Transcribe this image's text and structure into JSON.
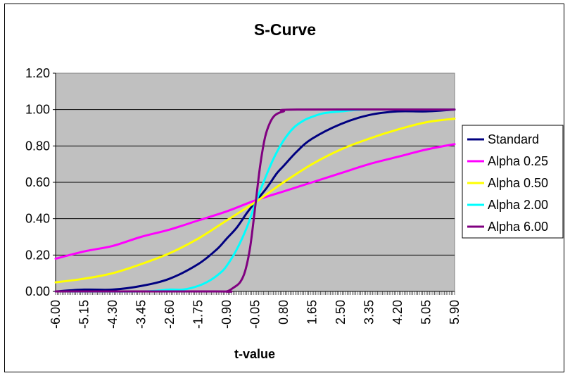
{
  "chart_data": {
    "type": "line",
    "title": "S-Curve",
    "xlabel": "t-value",
    "ylabel": "",
    "ylim": [
      0,
      1.2
    ],
    "yticks": [
      "0.00",
      "0.20",
      "0.40",
      "0.60",
      "0.80",
      "1.00",
      "1.20"
    ],
    "xlim": [
      -6.0,
      5.9
    ],
    "x_tick_labels": [
      "-6.00",
      "-5.15",
      "-4.30",
      "-3.45",
      "-2.60",
      "-1.75",
      "-0.90",
      "-0.05",
      "0.80",
      "1.65",
      "2.50",
      "3.35",
      "4.20",
      "5.05",
      "5.90"
    ],
    "x_tick_values": [
      -6.0,
      -5.15,
      -4.3,
      -3.45,
      -2.6,
      -1.75,
      -0.9,
      -0.05,
      0.8,
      1.65,
      2.5,
      3.35,
      4.2,
      5.05,
      5.9
    ],
    "grid": "horizontal",
    "plot_background": "#C0C0C0",
    "legend_position": "right",
    "series": [
      {
        "name": "Standard",
        "color": "#000080",
        "x": [
          -6.0,
          -5.15,
          -4.3,
          -3.45,
          -2.6,
          -1.75,
          -1.2,
          -0.9,
          -0.6,
          -0.3,
          -0.05,
          0.3,
          0.6,
          0.8,
          1.2,
          1.65,
          2.5,
          3.35,
          4.2,
          5.05,
          5.9
        ],
        "values": [
          0.0,
          0.01,
          0.01,
          0.03,
          0.07,
          0.15,
          0.23,
          0.29,
          0.35,
          0.43,
          0.49,
          0.57,
          0.65,
          0.69,
          0.77,
          0.84,
          0.92,
          0.97,
          0.99,
          0.99,
          1.0
        ]
      },
      {
        "name": "Alpha 0.25",
        "color": "#FF00FF",
        "x": [
          -6.0,
          -5.15,
          -4.3,
          -3.45,
          -2.6,
          -1.75,
          -0.9,
          -0.05,
          0.8,
          1.65,
          2.5,
          3.35,
          4.2,
          5.05,
          5.9
        ],
        "values": [
          0.18,
          0.22,
          0.25,
          0.3,
          0.34,
          0.39,
          0.44,
          0.5,
          0.55,
          0.6,
          0.65,
          0.7,
          0.74,
          0.78,
          0.81
        ]
      },
      {
        "name": "Alpha 0.50",
        "color": "#FFFF00",
        "x": [
          -6.0,
          -5.15,
          -4.3,
          -3.45,
          -2.6,
          -1.75,
          -0.9,
          -0.05,
          0.8,
          1.65,
          2.5,
          3.35,
          4.2,
          5.05,
          5.9
        ],
        "values": [
          0.05,
          0.07,
          0.1,
          0.15,
          0.21,
          0.29,
          0.39,
          0.49,
          0.6,
          0.7,
          0.78,
          0.84,
          0.89,
          0.93,
          0.95
        ]
      },
      {
        "name": "Alpha 2.00",
        "color": "#00FFFF",
        "x": [
          -6.0,
          -3.45,
          -2.6,
          -2.2,
          -1.75,
          -1.4,
          -1.1,
          -0.9,
          -0.6,
          -0.3,
          -0.05,
          0.2,
          0.5,
          0.8,
          1.1,
          1.4,
          1.65,
          2.0,
          2.5,
          3.35,
          5.9
        ],
        "values": [
          0.0,
          0.0,
          0.01,
          0.01,
          0.03,
          0.06,
          0.1,
          0.14,
          0.23,
          0.35,
          0.48,
          0.6,
          0.73,
          0.83,
          0.9,
          0.94,
          0.96,
          0.98,
          0.99,
          1.0,
          1.0
        ]
      },
      {
        "name": "Alpha 6.00",
        "color": "#800080",
        "x": [
          -6.0,
          -1.2,
          -0.9,
          -0.7,
          -0.5,
          -0.35,
          -0.2,
          -0.05,
          0.1,
          0.25,
          0.4,
          0.55,
          0.8,
          1.2,
          5.9
        ],
        "values": [
          0.0,
          0.0,
          0.0,
          0.02,
          0.05,
          0.11,
          0.24,
          0.46,
          0.69,
          0.85,
          0.93,
          0.97,
          0.99,
          1.0,
          1.0
        ]
      }
    ]
  }
}
